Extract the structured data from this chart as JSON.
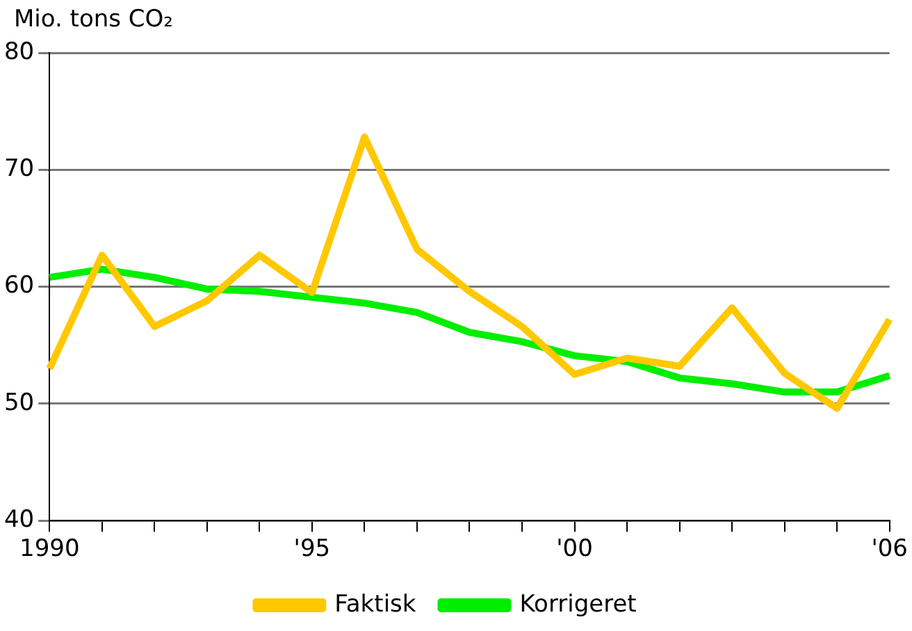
{
  "chart_data": {
    "type": "line",
    "ylabel": "Mio. tons CO₂",
    "categories": [
      "1990",
      null,
      null,
      null,
      null,
      "'95",
      null,
      null,
      null,
      null,
      "'00",
      null,
      null,
      null,
      null,
      null,
      "'06"
    ],
    "series": [
      {
        "name": "Faktisk",
        "color": "#ffc800",
        "values": [
          53,
          62.7,
          56.6,
          58.8,
          62.7,
          59.5,
          72.8,
          63.2,
          59.6,
          56.6,
          52.5,
          53.9,
          53.2,
          58.2,
          52.6,
          49.6,
          57.2
        ]
      },
      {
        "name": "Korrigeret",
        "color": "#00ee00",
        "values": [
          60.8,
          61.5,
          60.8,
          59.8,
          59.6,
          59.1,
          58.6,
          57.8,
          56.1,
          55.3,
          54.1,
          53.6,
          52.2,
          51.7,
          51,
          51,
          52.4
        ]
      }
    ],
    "ylim": [
      40,
      80
    ],
    "yticks": [
      40,
      50,
      60,
      70,
      80
    ],
    "grid": "y",
    "legend": "bottom",
    "marker": "none",
    "line_style": "solid"
  }
}
